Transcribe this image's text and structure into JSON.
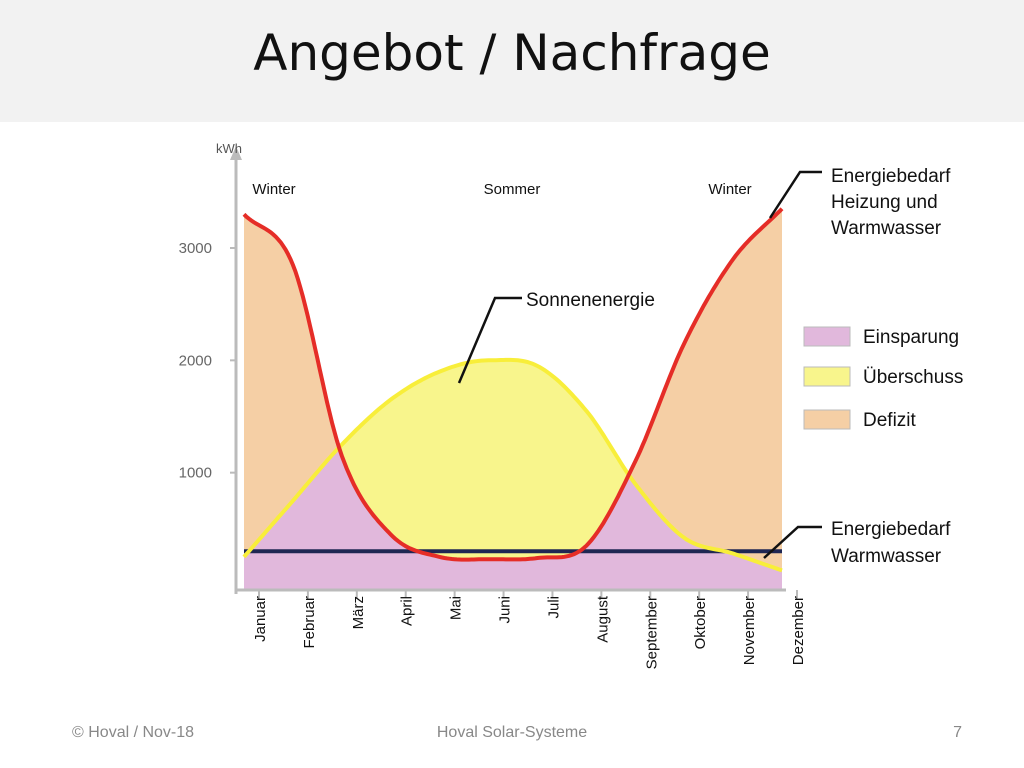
{
  "slide": {
    "title": "Angebot / Nachfrage",
    "footer_left": "© Hoval / Nov-18",
    "footer_center": "Hoval Solar-Systeme",
    "page_number": "7"
  },
  "chart_data": {
    "type": "area",
    "y_unit": "kWh",
    "ylim": [
      0,
      3700
    ],
    "y_ticks": [
      1000,
      2000,
      3000
    ],
    "categories": [
      "Januar",
      "Februar",
      "März",
      "April",
      "Mai",
      "Juni",
      "Juli",
      "August",
      "September",
      "Oktober",
      "November",
      "Dezember"
    ],
    "season_labels": [
      "Winter",
      "Sommer",
      "Winter"
    ],
    "series": [
      {
        "name": "Energiebedarf Heizung und Warmwasser",
        "color": "#e52d27",
        "values": [
          3300,
          2850,
          1150,
          450,
          250,
          230,
          240,
          350,
          1100,
          2150,
          2900,
          3350
        ]
      },
      {
        "name": "Sonnenenergie",
        "color": "#f8ee3a",
        "values": [
          250,
          750,
          1250,
          1650,
          1900,
          2000,
          1950,
          1550,
          900,
          420,
          280,
          130
        ]
      },
      {
        "name": "Energiebedarf Warmwasser",
        "color": "#1f2753",
        "values": [
          300,
          300,
          300,
          300,
          300,
          300,
          300,
          300,
          300,
          300,
          300,
          300
        ]
      }
    ],
    "legend": [
      {
        "label": "Einsparung",
        "color": "#e1b8dc"
      },
      {
        "label": "Überschuss",
        "color": "#f8f58c"
      },
      {
        "label": "Defizit",
        "color": "#f5cfa5"
      }
    ],
    "callouts": [
      {
        "lines": [
          "Energiebedarf",
          "Heizung und",
          "Warmwasser"
        ]
      },
      {
        "lines": [
          "Sonnenenergie"
        ]
      },
      {
        "lines": [
          "Energiebedarf",
          "Warmwasser"
        ]
      }
    ]
  }
}
